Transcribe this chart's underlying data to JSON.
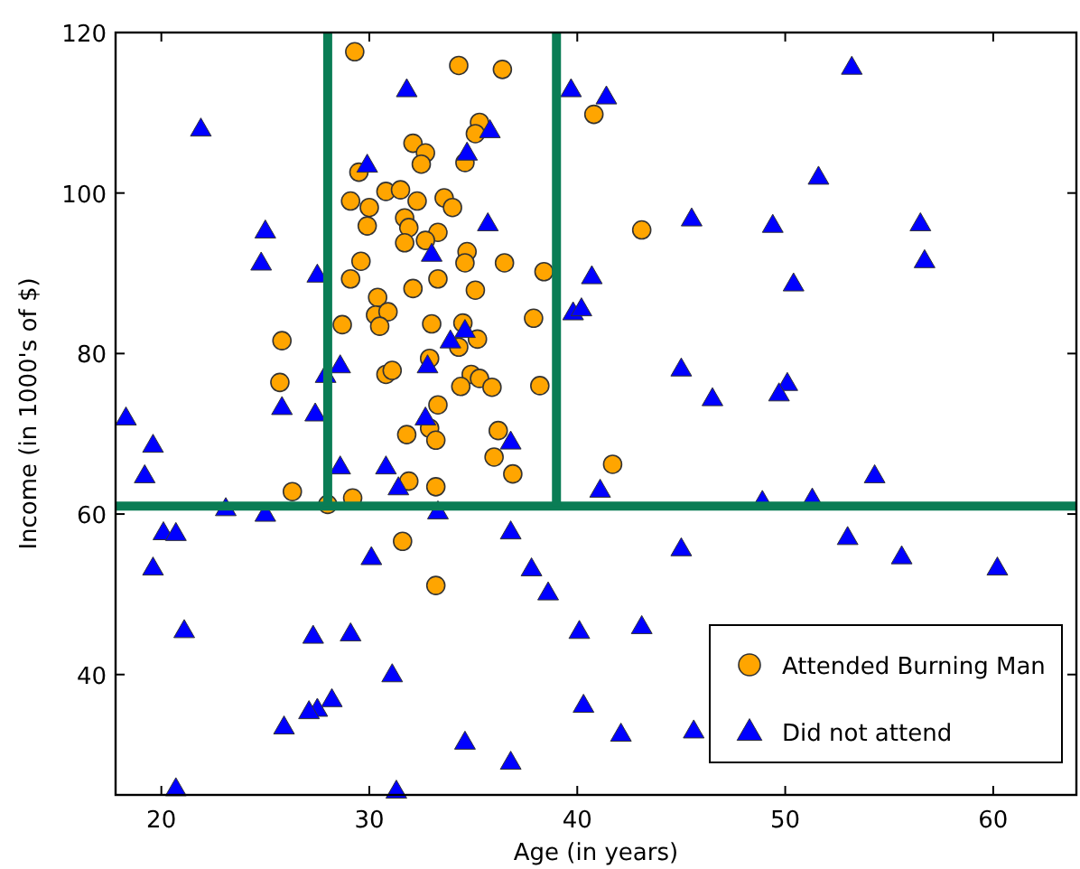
{
  "chart_data": {
    "type": "scatter",
    "xlabel": "Age (in years)",
    "ylabel": "Income (in 1000's of $)",
    "xlim": [
      17.8,
      64
    ],
    "ylim": [
      25,
      120
    ],
    "xticks": [
      20,
      30,
      40,
      50,
      60
    ],
    "yticks": [
      40,
      60,
      80,
      100,
      120
    ],
    "grid": false,
    "legend": "bottom right",
    "ref_lines": [
      {
        "axis": "y",
        "value": 61,
        "color": "#0a7d55"
      },
      {
        "axis": "x",
        "value": 28,
        "color": "#0a7d55"
      },
      {
        "axis": "x",
        "value": 39,
        "color": "#0a7d55"
      }
    ],
    "series": [
      {
        "name": "Attended Burning Man",
        "color": "#ffa500",
        "marker": "circle",
        "x": [
          29.3,
          34.3,
          36.4,
          40.8,
          35.3,
          35.1,
          32.1,
          32.7,
          32.5,
          34.6,
          29.5,
          29.1,
          30.0,
          30.8,
          31.5,
          32.3,
          33.6,
          34.0,
          29.9,
          31.7,
          31.9,
          33.3,
          31.7,
          32.7,
          29.6,
          34.7,
          34.6,
          36.5,
          38.4,
          29.1,
          32.1,
          33.3,
          35.1,
          30.4,
          30.3,
          30.9,
          30.5,
          28.7,
          33.0,
          34.5,
          35.2,
          34.3,
          37.9,
          32.9,
          30.8,
          31.1,
          34.9,
          35.3,
          34.4,
          35.9,
          38.2,
          33.3,
          31.8,
          32.9,
          33.2,
          36.2,
          36.0,
          36.9,
          31.9,
          33.2,
          29.2,
          28.0,
          26.3,
          25.8,
          25.7,
          43.1,
          41.7,
          31.6,
          33.2
        ],
        "values": [
          117.6,
          115.9,
          115.4,
          109.8,
          108.8,
          107.4,
          106.2,
          105.0,
          103.6,
          103.8,
          102.6,
          99.0,
          98.2,
          100.2,
          100.4,
          99.0,
          99.4,
          98.2,
          95.9,
          96.9,
          95.7,
          95.1,
          93.8,
          94.1,
          91.5,
          92.7,
          91.3,
          91.3,
          90.2,
          89.3,
          88.1,
          89.3,
          87.9,
          87.0,
          84.8,
          85.2,
          83.4,
          83.6,
          83.7,
          83.8,
          81.8,
          80.8,
          84.4,
          79.4,
          77.4,
          77.9,
          77.4,
          76.9,
          75.9,
          75.8,
          76.0,
          73.6,
          69.9,
          70.7,
          69.2,
          70.4,
          67.1,
          65.0,
          64.1,
          63.4,
          62.0,
          61.2,
          62.8,
          81.6,
          76.4,
          95.4,
          66.2,
          56.6,
          51.1
        ]
      },
      {
        "name": "Did not attend",
        "color": "#0000ff",
        "marker": "triangle",
        "x": [
          21.9,
          25.0,
          24.8,
          27.5,
          28.6,
          27.9,
          25.8,
          18.3,
          27.4,
          31.8,
          39.7,
          35.8,
          34.7,
          29.9,
          35.7,
          33.0,
          39.8,
          33.9,
          34.6,
          32.8,
          32.7,
          36.8,
          28.6,
          30.8,
          31.4,
          33.3,
          41.4,
          53.2,
          51.6,
          45.5,
          49.4,
          56.5,
          56.7,
          50.4,
          40.7,
          40.2,
          45.0,
          46.5,
          50.1,
          49.7,
          19.6,
          19.2,
          23.1,
          25.0,
          20.1,
          20.7,
          19.6,
          36.8,
          30.1,
          37.8,
          38.6,
          21.1,
          27.3,
          29.1,
          40.1,
          31.1,
          40.3,
          28.2,
          27.5,
          27.1,
          25.9,
          34.6,
          36.8,
          20.7,
          31.3,
          41.1,
          48.9,
          51.3,
          54.3,
          53.0,
          55.6,
          60.2,
          45.0,
          43.1,
          42.1,
          45.6
        ],
        "values": [
          108.0,
          95.3,
          91.3,
          89.8,
          78.5,
          77.3,
          73.3,
          72.0,
          72.5,
          112.9,
          112.9,
          107.8,
          105.0,
          103.5,
          96.2,
          92.4,
          85.1,
          81.6,
          82.9,
          78.5,
          72.0,
          69.0,
          65.9,
          65.9,
          63.3,
          60.3,
          112.0,
          115.7,
          102.0,
          96.8,
          96.0,
          96.2,
          91.6,
          88.7,
          89.6,
          85.6,
          78.1,
          74.4,
          76.3,
          75.0,
          68.6,
          64.8,
          60.7,
          60.0,
          57.7,
          57.6,
          53.3,
          57.8,
          54.6,
          53.2,
          50.2,
          45.5,
          44.8,
          45.1,
          45.4,
          40.0,
          36.2,
          36.9,
          35.7,
          35.4,
          33.5,
          31.6,
          29.1,
          25.8,
          25.5,
          63.0,
          61.6,
          61.9,
          64.8,
          57.1,
          54.7,
          53.3,
          55.7,
          46.0,
          32.6,
          33.0
        ]
      }
    ]
  }
}
